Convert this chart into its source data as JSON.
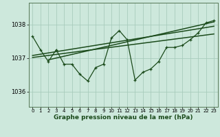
{
  "title": "Graphe pression niveau de la mer (hPa)",
  "bg_color": "#cde8dc",
  "grid_color": "#a8ccbc",
  "line_color": "#1a4a1a",
  "spine_color": "#557755",
  "x_ticks": [
    0,
    1,
    2,
    3,
    4,
    5,
    6,
    7,
    8,
    9,
    10,
    11,
    12,
    13,
    14,
    15,
    16,
    17,
    18,
    19,
    20,
    21,
    22,
    23
  ],
  "y_ticks": [
    1036,
    1037,
    1038
  ],
  "ylim": [
    1035.55,
    1038.65
  ],
  "xlim": [
    -0.5,
    23.5
  ],
  "main_series_x": [
    0,
    1,
    2,
    3,
    4,
    5,
    6,
    7,
    8,
    9,
    10,
    11,
    12,
    13,
    14,
    15,
    16,
    17,
    18,
    19,
    20,
    21,
    22,
    23
  ],
  "main_series_y": [
    1037.65,
    1037.25,
    1036.9,
    1037.25,
    1036.82,
    1036.82,
    1036.52,
    1036.32,
    1036.72,
    1036.82,
    1037.6,
    1037.82,
    1037.55,
    1036.35,
    1036.58,
    1036.68,
    1036.9,
    1037.32,
    1037.32,
    1037.38,
    1037.55,
    1037.75,
    1038.05,
    1038.12
  ],
  "trend1_x": [
    0,
    23
  ],
  "trend1_y": [
    1037.02,
    1037.72
  ],
  "trend2_x": [
    0,
    23
  ],
  "trend2_y": [
    1037.08,
    1037.95
  ],
  "trend3_x": [
    2,
    23
  ],
  "trend3_y": [
    1036.95,
    1038.08
  ]
}
